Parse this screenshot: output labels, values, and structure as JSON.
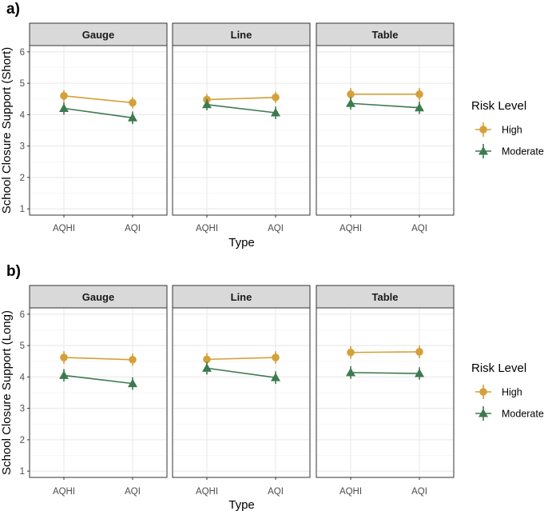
{
  "chart_data": [
    {
      "type": "line",
      "panel_label": "a)",
      "facets": [
        "Gauge",
        "Line",
        "Table"
      ],
      "categories": [
        "AQHI",
        "AQI"
      ],
      "xlabel": "Type",
      "ylabel": "School Closure Support (Short)",
      "ylim": [
        0.8,
        6.2
      ],
      "yticks": [
        1,
        2,
        3,
        4,
        5,
        6
      ],
      "series": [
        {
          "name": "High",
          "values": [
            [
              4.6,
              4.38
            ],
            [
              4.48,
              4.55
            ],
            [
              4.65,
              4.65
            ]
          ],
          "err": [
            [
              0.18,
              0.18
            ],
            [
              0.18,
              0.18
            ],
            [
              0.2,
              0.2
            ]
          ]
        },
        {
          "name": "Moderate",
          "values": [
            [
              4.2,
              3.9
            ],
            [
              4.32,
              4.06
            ],
            [
              4.36,
              4.22
            ]
          ],
          "err": [
            [
              0.2,
              0.2
            ],
            [
              0.18,
              0.2
            ],
            [
              0.2,
              0.2
            ]
          ]
        }
      ]
    },
    {
      "type": "line",
      "panel_label": "b)",
      "facets": [
        "Gauge",
        "Line",
        "Table"
      ],
      "categories": [
        "AQHI",
        "AQI"
      ],
      "xlabel": "Type",
      "ylabel": "School Closure Support (Long)",
      "ylim": [
        0.8,
        6.2
      ],
      "yticks": [
        1,
        2,
        3,
        4,
        5,
        6
      ],
      "series": [
        {
          "name": "High",
          "values": [
            [
              4.62,
              4.55
            ],
            [
              4.56,
              4.62
            ],
            [
              4.78,
              4.8
            ]
          ],
          "err": [
            [
              0.2,
              0.2
            ],
            [
              0.2,
              0.2
            ],
            [
              0.2,
              0.2
            ]
          ]
        },
        {
          "name": "Moderate",
          "values": [
            [
              4.05,
              3.79
            ],
            [
              4.28,
              3.98
            ],
            [
              4.14,
              4.11
            ]
          ],
          "err": [
            [
              0.2,
              0.2
            ],
            [
              0.2,
              0.2
            ],
            [
              0.2,
              0.2
            ]
          ]
        }
      ]
    }
  ],
  "legend": {
    "title": "Risk Level",
    "items": [
      "High",
      "Moderate"
    ]
  },
  "colors": {
    "High": "#D4A039",
    "Moderate": "#3E7A4F",
    "strip": "#D9D9D9",
    "grid_major": "#EBEBEB",
    "grid_minor": "#F5F5F5",
    "border": "#333333"
  }
}
